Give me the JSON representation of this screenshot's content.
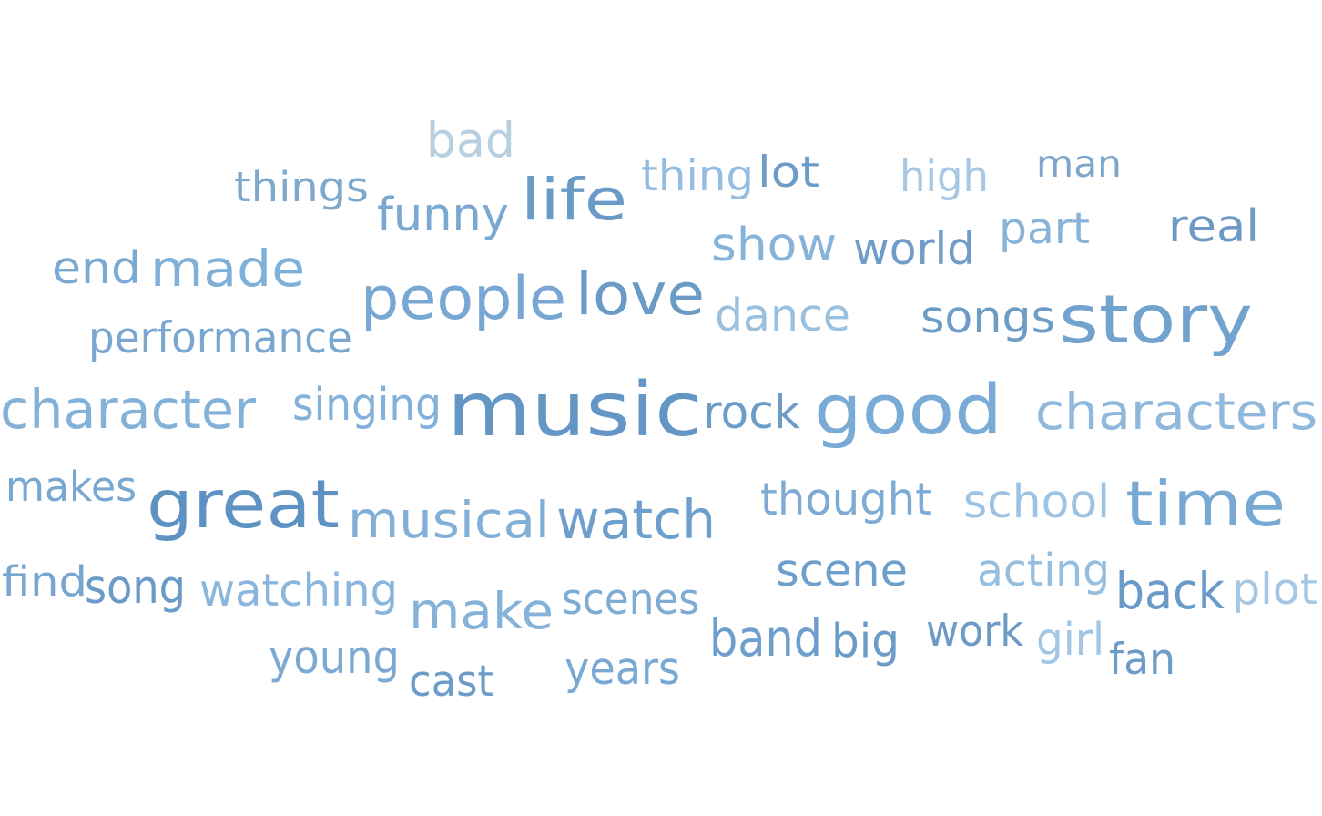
{
  "words": [
    {
      "text": "bad",
      "color": "#b8cfdf"
    },
    {
      "text": "things",
      "color": "#7fa9cc"
    },
    {
      "text": "funny",
      "color": "#7aa8d0"
    },
    {
      "text": "life",
      "color": "#6a9bc6"
    },
    {
      "text": "thing",
      "color": "#94bde0"
    },
    {
      "text": "lot",
      "color": "#6c9cc8"
    },
    {
      "text": "high",
      "color": "#a6c8e4"
    },
    {
      "text": "man",
      "color": "#7da6ca"
    },
    {
      "text": "end",
      "color": "#7aa9d2"
    },
    {
      "text": "made",
      "color": "#7fb0d8"
    },
    {
      "text": "show",
      "color": "#85b3d9"
    },
    {
      "text": "world",
      "color": "#6f9dc8"
    },
    {
      "text": "part",
      "color": "#88b3d9"
    },
    {
      "text": "real",
      "color": "#6d9ac5"
    },
    {
      "text": "people",
      "color": "#77a7d2"
    },
    {
      "text": "love",
      "color": "#6a9bc7"
    },
    {
      "text": "dance",
      "color": "#9ac0e0"
    },
    {
      "text": "songs",
      "color": "#6d9cc7"
    },
    {
      "text": "story",
      "color": "#72a3cf"
    },
    {
      "text": "performance",
      "color": "#79a7d0"
    },
    {
      "text": "character",
      "color": "#83b1d8"
    },
    {
      "text": "singing",
      "color": "#83b1da"
    },
    {
      "text": "music",
      "color": "#6396c4"
    },
    {
      "text": "rock",
      "color": "#6c9cc8"
    },
    {
      "text": "good",
      "color": "#7aabd6"
    },
    {
      "text": "characters",
      "color": "#8fb8dc"
    },
    {
      "text": "makes",
      "color": "#78a8d2"
    },
    {
      "text": "great",
      "color": "#5e92c2"
    },
    {
      "text": "musical",
      "color": "#81afd8"
    },
    {
      "text": "watch",
      "color": "#6e9fcc"
    },
    {
      "text": "thought",
      "color": "#7eabd4"
    },
    {
      "text": "school",
      "color": "#9cc3e3"
    },
    {
      "text": "time",
      "color": "#78a9d4"
    },
    {
      "text": "find",
      "color": "#77a6d1"
    },
    {
      "text": "song",
      "color": "#6a9ac8"
    },
    {
      "text": "watching",
      "color": "#8ab5dc"
    },
    {
      "text": "make",
      "color": "#86b2d9"
    },
    {
      "text": "scenes",
      "color": "#7eacd5"
    },
    {
      "text": "scene",
      "color": "#6e9ecb"
    },
    {
      "text": "acting",
      "color": "#95bedf"
    },
    {
      "text": "back",
      "color": "#6a9ac8"
    },
    {
      "text": "plot",
      "color": "#a4c7e5"
    },
    {
      "text": "young",
      "color": "#7ca9d3"
    },
    {
      "text": "cast",
      "color": "#6d9ccb"
    },
    {
      "text": "years",
      "color": "#79a8d3"
    },
    {
      "text": "band",
      "color": "#6e9ecb"
    },
    {
      "text": "big",
      "color": "#6b9bc8"
    },
    {
      "text": "work",
      "color": "#6d9bc6"
    },
    {
      "text": "girl",
      "color": "#a2c6e4"
    },
    {
      "text": "fan",
      "color": "#6d9cc9"
    }
  ]
}
